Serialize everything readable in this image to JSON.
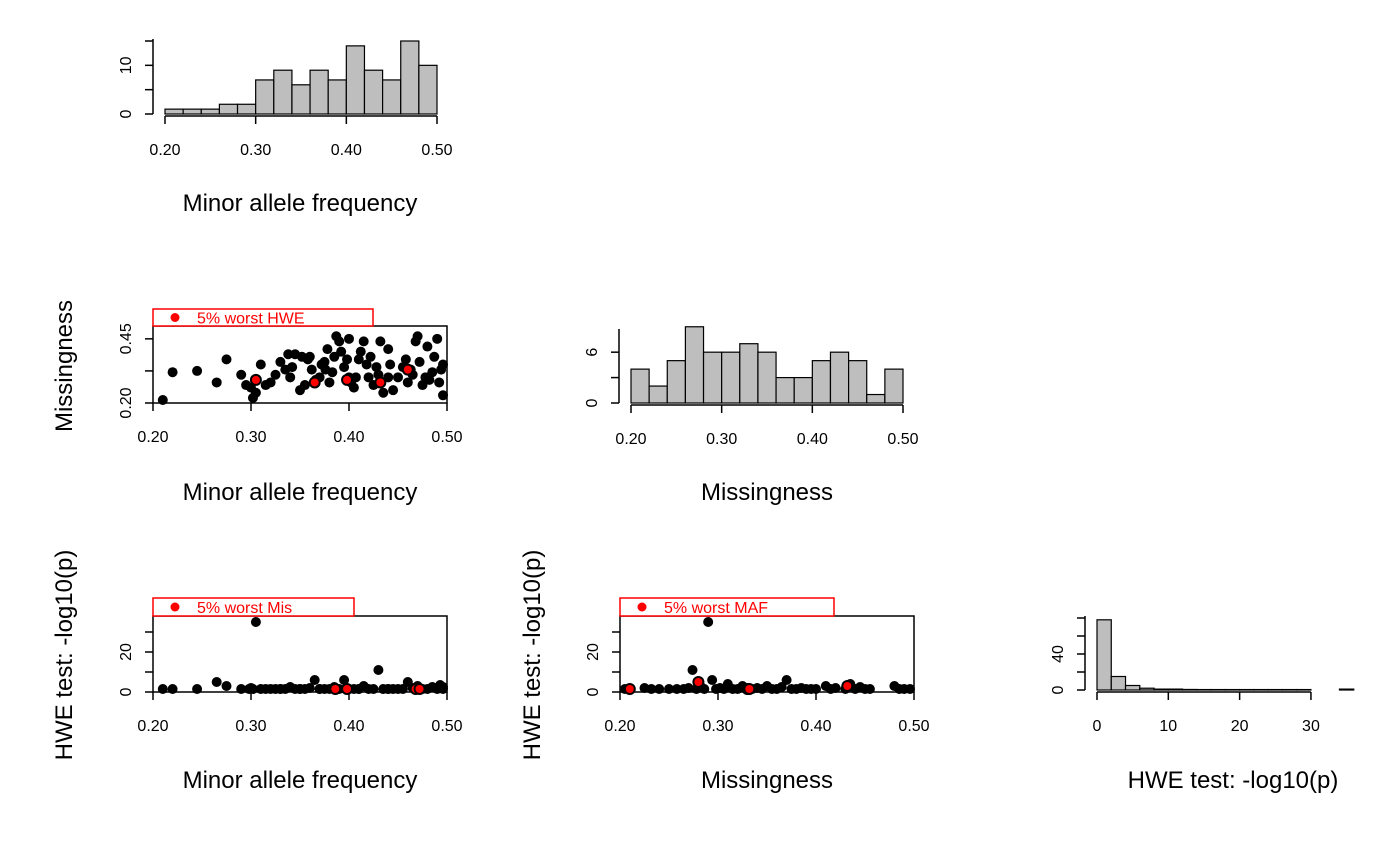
{
  "colors": {
    "axis": "#000000",
    "bar_fill": "#bebebe",
    "point": "#000000",
    "highlight": "#ff0000",
    "background": "#ffffff"
  },
  "chart_data": [
    {
      "id": "maf-hist",
      "type": "bar",
      "xlabel": "Minor allele frequency",
      "ylabel": "",
      "xlim": [
        0.2,
        0.5
      ],
      "ylim": [
        0,
        15
      ],
      "bin_width": 0.02,
      "bin_start": 0.2,
      "values": [
        1,
        1,
        1,
        2,
        2,
        7,
        9,
        6,
        9,
        7,
        14,
        9,
        7,
        15,
        10
      ],
      "x_ticks": [
        "0.20",
        "0.30",
        "0.40",
        "0.50"
      ],
      "x_tick_values": [
        0.2,
        0.3,
        0.4,
        0.5
      ],
      "y_ticks": [
        "0",
        "10"
      ],
      "y_tick_values": [
        0,
        10
      ]
    },
    {
      "id": "mis-vs-maf",
      "type": "scatter",
      "xlabel": "Minor allele frequency",
      "ylabel": "Missingness",
      "xlim": [
        0.2,
        0.5
      ],
      "ylim": [
        0.2,
        0.5
      ],
      "x_ticks": [
        "0.20",
        "0.30",
        "0.40",
        "0.50"
      ],
      "x_tick_values": [
        0.2,
        0.3,
        0.4,
        0.5
      ],
      "y_ticks": [
        "0.20",
        "0.45"
      ],
      "y_tick_values": [
        0.2,
        0.45
      ],
      "legend": {
        "label": "5% worst HWE",
        "placement": "top-left"
      },
      "points": [
        [
          0.21,
          0.21
        ],
        [
          0.22,
          0.32
        ],
        [
          0.245,
          0.325
        ],
        [
          0.265,
          0.28
        ],
        [
          0.275,
          0.37
        ],
        [
          0.29,
          0.31
        ],
        [
          0.295,
          0.27
        ],
        [
          0.3,
          0.26
        ],
        [
          0.302,
          0.22
        ],
        [
          0.305,
          0.24
        ],
        [
          0.31,
          0.35
        ],
        [
          0.315,
          0.27
        ],
        [
          0.32,
          0.28
        ],
        [
          0.325,
          0.31
        ],
        [
          0.33,
          0.36
        ],
        [
          0.335,
          0.33
        ],
        [
          0.338,
          0.39
        ],
        [
          0.34,
          0.3
        ],
        [
          0.342,
          0.34
        ],
        [
          0.345,
          0.39
        ],
        [
          0.35,
          0.25
        ],
        [
          0.352,
          0.38
        ],
        [
          0.355,
          0.27
        ],
        [
          0.358,
          0.37
        ],
        [
          0.36,
          0.38
        ],
        [
          0.362,
          0.33
        ],
        [
          0.366,
          0.29
        ],
        [
          0.37,
          0.3
        ],
        [
          0.372,
          0.35
        ],
        [
          0.375,
          0.36
        ],
        [
          0.378,
          0.41
        ],
        [
          0.38,
          0.28
        ],
        [
          0.383,
          0.32
        ],
        [
          0.385,
          0.38
        ],
        [
          0.387,
          0.46
        ],
        [
          0.39,
          0.44
        ],
        [
          0.392,
          0.4
        ],
        [
          0.395,
          0.34
        ],
        [
          0.398,
          0.37
        ],
        [
          0.4,
          0.45
        ],
        [
          0.402,
          0.28
        ],
        [
          0.405,
          0.26
        ],
        [
          0.407,
          0.3
        ],
        [
          0.41,
          0.37
        ],
        [
          0.412,
          0.4
        ],
        [
          0.415,
          0.44
        ],
        [
          0.418,
          0.35
        ],
        [
          0.42,
          0.3
        ],
        [
          0.422,
          0.38
        ],
        [
          0.425,
          0.27
        ],
        [
          0.428,
          0.34
        ],
        [
          0.43,
          0.31
        ],
        [
          0.432,
          0.44
        ],
        [
          0.435,
          0.24
        ],
        [
          0.44,
          0.3
        ],
        [
          0.442,
          0.35
        ],
        [
          0.445,
          0.25
        ],
        [
          0.45,
          0.3
        ],
        [
          0.455,
          0.34
        ],
        [
          0.458,
          0.37
        ],
        [
          0.46,
          0.28
        ],
        [
          0.463,
          0.33
        ],
        [
          0.465,
          0.31
        ],
        [
          0.468,
          0.44
        ],
        [
          0.47,
          0.46
        ],
        [
          0.472,
          0.36
        ],
        [
          0.475,
          0.27
        ],
        [
          0.478,
          0.3
        ],
        [
          0.48,
          0.42
        ],
        [
          0.482,
          0.29
        ],
        [
          0.485,
          0.32
        ],
        [
          0.487,
          0.38
        ],
        [
          0.49,
          0.45
        ],
        [
          0.492,
          0.28
        ],
        [
          0.494,
          0.33
        ],
        [
          0.496,
          0.35
        ],
        [
          0.498,
          0.23
        ],
        [
          0.4,
          0.3
        ],
        [
          0.44,
          0.41
        ],
        [
          0.376,
          0.33
        ]
      ],
      "highlight_points": [
        [
          0.305,
          0.29
        ],
        [
          0.365,
          0.28
        ],
        [
          0.398,
          0.29
        ],
        [
          0.432,
          0.28
        ],
        [
          0.46,
          0.33
        ]
      ]
    },
    {
      "id": "mis-hist",
      "type": "bar",
      "xlabel": "Missingness",
      "ylabel": "",
      "xlim": [
        0.2,
        0.5
      ],
      "ylim": [
        0,
        8.5
      ],
      "bin_width": 0.02,
      "bin_start": 0.2,
      "values": [
        4,
        2,
        5,
        9,
        6,
        6,
        7,
        6,
        3,
        3,
        5,
        6,
        5,
        1,
        4
      ],
      "x_ticks": [
        "0.20",
        "0.30",
        "0.40",
        "0.50"
      ],
      "x_tick_values": [
        0.2,
        0.3,
        0.4,
        0.5
      ],
      "y_ticks": [
        "0",
        "6"
      ],
      "y_tick_values": [
        0,
        6
      ]
    },
    {
      "id": "hwe-vs-maf",
      "type": "scatter",
      "xlabel": "Minor allele frequency",
      "ylabel": "HWE test: -log10(p)",
      "xlim": [
        0.2,
        0.5
      ],
      "ylim": [
        0,
        38
      ],
      "x_ticks": [
        "0.20",
        "0.30",
        "0.40",
        "0.50"
      ],
      "x_tick_values": [
        0.2,
        0.3,
        0.4,
        0.5
      ],
      "y_ticks": [
        "0",
        "20"
      ],
      "y_tick_values": [
        0,
        20
      ],
      "legend": {
        "label": "5% worst Mis",
        "placement": "top-left"
      },
      "points": [
        [
          0.21,
          0.5
        ],
        [
          0.22,
          0.4
        ],
        [
          0.245,
          0.3
        ],
        [
          0.265,
          5
        ],
        [
          0.275,
          3
        ],
        [
          0.29,
          0.5
        ],
        [
          0.298,
          1
        ],
        [
          0.3,
          2
        ],
        [
          0.302,
          0.5
        ],
        [
          0.305,
          35
        ],
        [
          0.31,
          1.5
        ],
        [
          0.315,
          0.8
        ],
        [
          0.32,
          0.5
        ],
        [
          0.325,
          0.3
        ],
        [
          0.33,
          1
        ],
        [
          0.335,
          0.4
        ],
        [
          0.34,
          2.5
        ],
        [
          0.345,
          0.6
        ],
        [
          0.35,
          1.2
        ],
        [
          0.355,
          0.3
        ],
        [
          0.36,
          2
        ],
        [
          0.365,
          6
        ],
        [
          0.37,
          1
        ],
        [
          0.375,
          0.4
        ],
        [
          0.38,
          0.8
        ],
        [
          0.385,
          2.5
        ],
        [
          0.39,
          0.3
        ],
        [
          0.395,
          6
        ],
        [
          0.4,
          1.5
        ],
        [
          0.405,
          0.5
        ],
        [
          0.41,
          0.2
        ],
        [
          0.415,
          3
        ],
        [
          0.42,
          0.6
        ],
        [
          0.425,
          1
        ],
        [
          0.43,
          11
        ],
        [
          0.435,
          0.3
        ],
        [
          0.44,
          1.5
        ],
        [
          0.445,
          0.4
        ],
        [
          0.45,
          0.7
        ],
        [
          0.455,
          0.5
        ],
        [
          0.46,
          5
        ],
        [
          0.465,
          2
        ],
        [
          0.47,
          3
        ],
        [
          0.475,
          0.6
        ],
        [
          0.48,
          1.5
        ],
        [
          0.485,
          2.5
        ],
        [
          0.49,
          0.4
        ],
        [
          0.493,
          3.5
        ],
        [
          0.496,
          1
        ],
        [
          0.498,
          2.5
        ],
        [
          0.35,
          0.9
        ],
        [
          0.37,
          0.3
        ],
        [
          0.41,
          0.8
        ],
        [
          0.44,
          0.2
        ],
        [
          0.33,
          0.2
        ]
      ],
      "highlight_points": [
        [
          0.386,
          0.2
        ],
        [
          0.398,
          0.1
        ],
        [
          0.468,
          0.8
        ],
        [
          0.472,
          0.3
        ]
      ]
    },
    {
      "id": "hwe-vs-mis",
      "type": "scatter",
      "xlabel": "Missingness",
      "ylabel": "HWE test: -log10(p)",
      "xlim": [
        0.2,
        0.5
      ],
      "ylim": [
        0,
        38
      ],
      "x_ticks": [
        "0.20",
        "0.30",
        "0.40",
        "0.50"
      ],
      "x_tick_values": [
        0.2,
        0.3,
        0.4,
        0.5
      ],
      "y_ticks": [
        "0",
        "20"
      ],
      "y_tick_values": [
        0,
        20
      ],
      "legend": {
        "label": "5% worst MAF",
        "placement": "top-left"
      },
      "points": [
        [
          0.205,
          0.5
        ],
        [
          0.21,
          0.3
        ],
        [
          0.225,
          2
        ],
        [
          0.232,
          1.5
        ],
        [
          0.24,
          0.5
        ],
        [
          0.25,
          0.3
        ],
        [
          0.258,
          0.8
        ],
        [
          0.265,
          1.2
        ],
        [
          0.27,
          2
        ],
        [
          0.274,
          11
        ],
        [
          0.278,
          0.5
        ],
        [
          0.282,
          3
        ],
        [
          0.286,
          1
        ],
        [
          0.29,
          35
        ],
        [
          0.294,
          6
        ],
        [
          0.298,
          0.5
        ],
        [
          0.302,
          2
        ],
        [
          0.306,
          0.3
        ],
        [
          0.31,
          4
        ],
        [
          0.315,
          1.5
        ],
        [
          0.32,
          0.6
        ],
        [
          0.325,
          3
        ],
        [
          0.33,
          1
        ],
        [
          0.335,
          0.3
        ],
        [
          0.34,
          2
        ],
        [
          0.345,
          0.5
        ],
        [
          0.35,
          3
        ],
        [
          0.355,
          1
        ],
        [
          0.36,
          0.4
        ],
        [
          0.365,
          2.5
        ],
        [
          0.37,
          6
        ],
        [
          0.375,
          1
        ],
        [
          0.38,
          0.3
        ],
        [
          0.385,
          2
        ],
        [
          0.39,
          0.5
        ],
        [
          0.395,
          0.2
        ],
        [
          0.4,
          1
        ],
        [
          0.41,
          3
        ],
        [
          0.415,
          0.5
        ],
        [
          0.42,
          2
        ],
        [
          0.43,
          1
        ],
        [
          0.435,
          4
        ],
        [
          0.44,
          0.5
        ],
        [
          0.445,
          2.5
        ],
        [
          0.45,
          1
        ],
        [
          0.455,
          0.3
        ],
        [
          0.48,
          3
        ],
        [
          0.485,
          0.5
        ],
        [
          0.49,
          1
        ],
        [
          0.498,
          0.3
        ]
      ],
      "highlight_points": [
        [
          0.21,
          0.2
        ],
        [
          0.28,
          5
        ],
        [
          0.33,
          0.3
        ],
        [
          0.332,
          0.1
        ],
        [
          0.432,
          3
        ]
      ]
    },
    {
      "id": "hwe-hist",
      "type": "bar",
      "xlabel": "HWE test: -log10(p)",
      "ylabel": "",
      "xlim": [
        0,
        38
      ],
      "ylim": [
        0,
        80
      ],
      "bin_width": 2,
      "bin_start": 0,
      "values": [
        78,
        15,
        5,
        2,
        1,
        1,
        0.6,
        0.5,
        0.5,
        0.5,
        0.5,
        0.5,
        0.5,
        0.5,
        0.5,
        0,
        0,
        1
      ],
      "x_ticks": [
        "0",
        "10",
        "20",
        "30"
      ],
      "x_tick_values": [
        0,
        10,
        20,
        30
      ],
      "y_ticks": [
        "0",
        "40"
      ],
      "y_tick_values": [
        0,
        40
      ]
    }
  ]
}
